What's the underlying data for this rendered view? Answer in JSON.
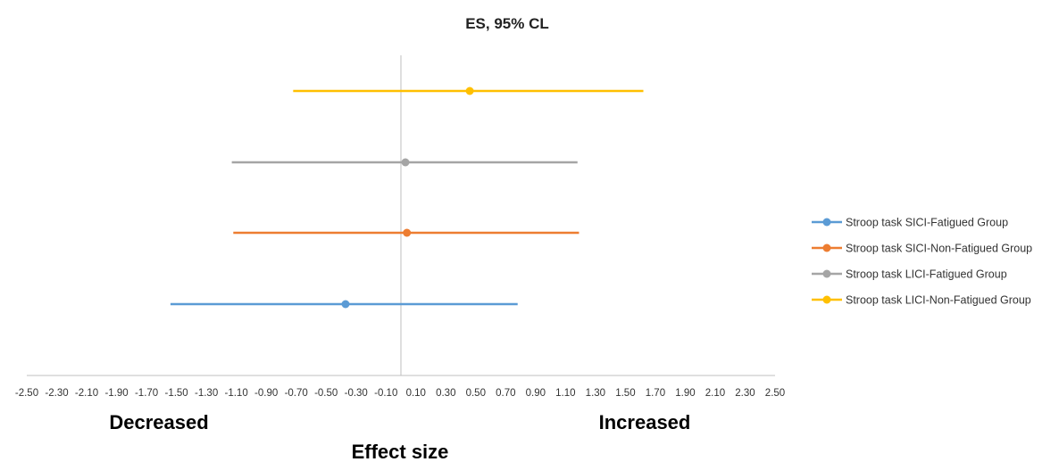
{
  "chart_data": {
    "type": "forest",
    "title": "ES, 95% CL",
    "xlabel": "Effect size",
    "left_annotation": "Decreased",
    "right_annotation": "Increased",
    "xlim": [
      -2.5,
      2.5
    ],
    "x_ticks": [
      "-2.50",
      "-2.30",
      "-2.10",
      "-1.90",
      "-1.70",
      "-1.50",
      "-1.30",
      "-1.10",
      "-0.90",
      "-0.70",
      "-0.50",
      "-0.30",
      "-0.10",
      "0.10",
      "0.30",
      "0.50",
      "0.70",
      "0.90",
      "1.10",
      "1.30",
      "1.50",
      "1.70",
      "1.90",
      "2.10",
      "2.30",
      "2.50"
    ],
    "grid": false,
    "legend_position": "right",
    "series": [
      {
        "name": "Stroop task SICI-Fatigued Group",
        "color": "#5B9BD5",
        "estimate": -0.37,
        "lower": -1.54,
        "upper": 0.78
      },
      {
        "name": "Stroop task SICI-Non-Fatigued Group",
        "color": "#ED7D31",
        "estimate": 0.04,
        "lower": -1.12,
        "upper": 1.19
      },
      {
        "name": "Stroop task LICI-Fatigued Group",
        "color": "#A5A5A5",
        "estimate": 0.03,
        "lower": -1.13,
        "upper": 1.18
      },
      {
        "name": "Stroop task LICI-Non-Fatigued Group",
        "color": "#FFC000",
        "estimate": 0.46,
        "lower": -0.72,
        "upper": 1.62
      }
    ]
  }
}
